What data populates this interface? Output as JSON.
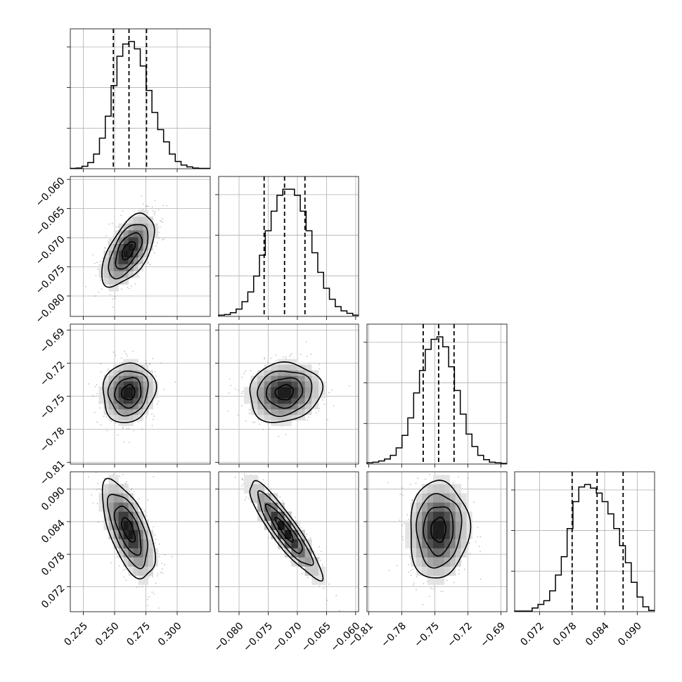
{
  "chart_data": {
    "type": "corner",
    "grid": true,
    "colors": {
      "lines": "#000000",
      "grid": "#b0b0b0",
      "samples": "#7a7a7a",
      "density_darkest": "#000000"
    },
    "parameters": [
      {
        "range": [
          0.2146,
          0.3264
        ],
        "ticks": [
          0.225,
          0.25,
          0.275,
          0.3
        ],
        "tick_labels": [
          "0.225",
          "0.250",
          "0.275",
          "0.300"
        ],
        "mean": 0.261,
        "std": 0.0105,
        "quantiles": [
          0.249,
          0.2615,
          0.2755
        ],
        "histogram": [
          0.3,
          0.6,
          2,
          5,
          12,
          25,
          43,
          68,
          92,
          102,
          104,
          98,
          84,
          64,
          46,
          32,
          22,
          12,
          6,
          3,
          1.5,
          0.6,
          0.3,
          0.3
        ]
      },
      {
        "range": [
          -0.0835,
          -0.0595
        ],
        "ticks": [
          -0.08,
          -0.075,
          -0.07,
          -0.065,
          -0.06
        ],
        "tick_labels": [
          "−0.080",
          "−0.075",
          "−0.070",
          "−0.065",
          "−0.060"
        ],
        "mean": -0.0722,
        "std": 0.0031,
        "quantiles": [
          -0.0757,
          -0.0722,
          -0.0687
        ],
        "histogram": [
          1,
          1.5,
          3,
          6,
          12,
          20,
          33,
          50,
          70,
          86,
          99,
          104,
          104,
          99,
          86,
          70,
          52,
          36,
          23,
          14,
          8,
          4.5,
          2.5,
          1
        ]
      },
      {
        "range": [
          -0.8115,
          -0.6845
        ],
        "ticks": [
          -0.81,
          -0.78,
          -0.75,
          -0.72,
          -0.69
        ],
        "tick_labels": [
          "−0.81",
          "−0.78",
          "−0.75",
          "−0.72",
          "−0.69"
        ],
        "mean": -0.7465,
        "std": 0.0135,
        "quantiles": [
          -0.7605,
          -0.7465,
          -0.7325
        ],
        "histogram": [
          1,
          1.5,
          2.5,
          4,
          7,
          13,
          23,
          37,
          57,
          75,
          92,
          100,
          102,
          94,
          78,
          59,
          40,
          24,
          14,
          7,
          3.5,
          1.5,
          1,
          0.5
        ]
      },
      {
        "range": [
          0.0674,
          0.0932
        ],
        "ticks": [
          0.072,
          0.078,
          0.084,
          0.09
        ],
        "tick_labels": [
          "0.072",
          "0.078",
          "0.084",
          "0.090"
        ],
        "mean": 0.0825,
        "std": 0.0045,
        "quantiles": [
          0.078,
          0.0826,
          0.0874
        ],
        "histogram": [
          0.5,
          0.5,
          0.5,
          3,
          6,
          9,
          17,
          30,
          45,
          68,
          90,
          102,
          104,
          101,
          97,
          90,
          80,
          68,
          54,
          40,
          24,
          12,
          4,
          1
        ]
      }
    ],
    "correlations": {
      "1,0": 0.58,
      "2,0": 0.1,
      "2,1": 0.1,
      "3,0": -0.62,
      "3,1": -0.9,
      "3,2": 0.05
    }
  }
}
